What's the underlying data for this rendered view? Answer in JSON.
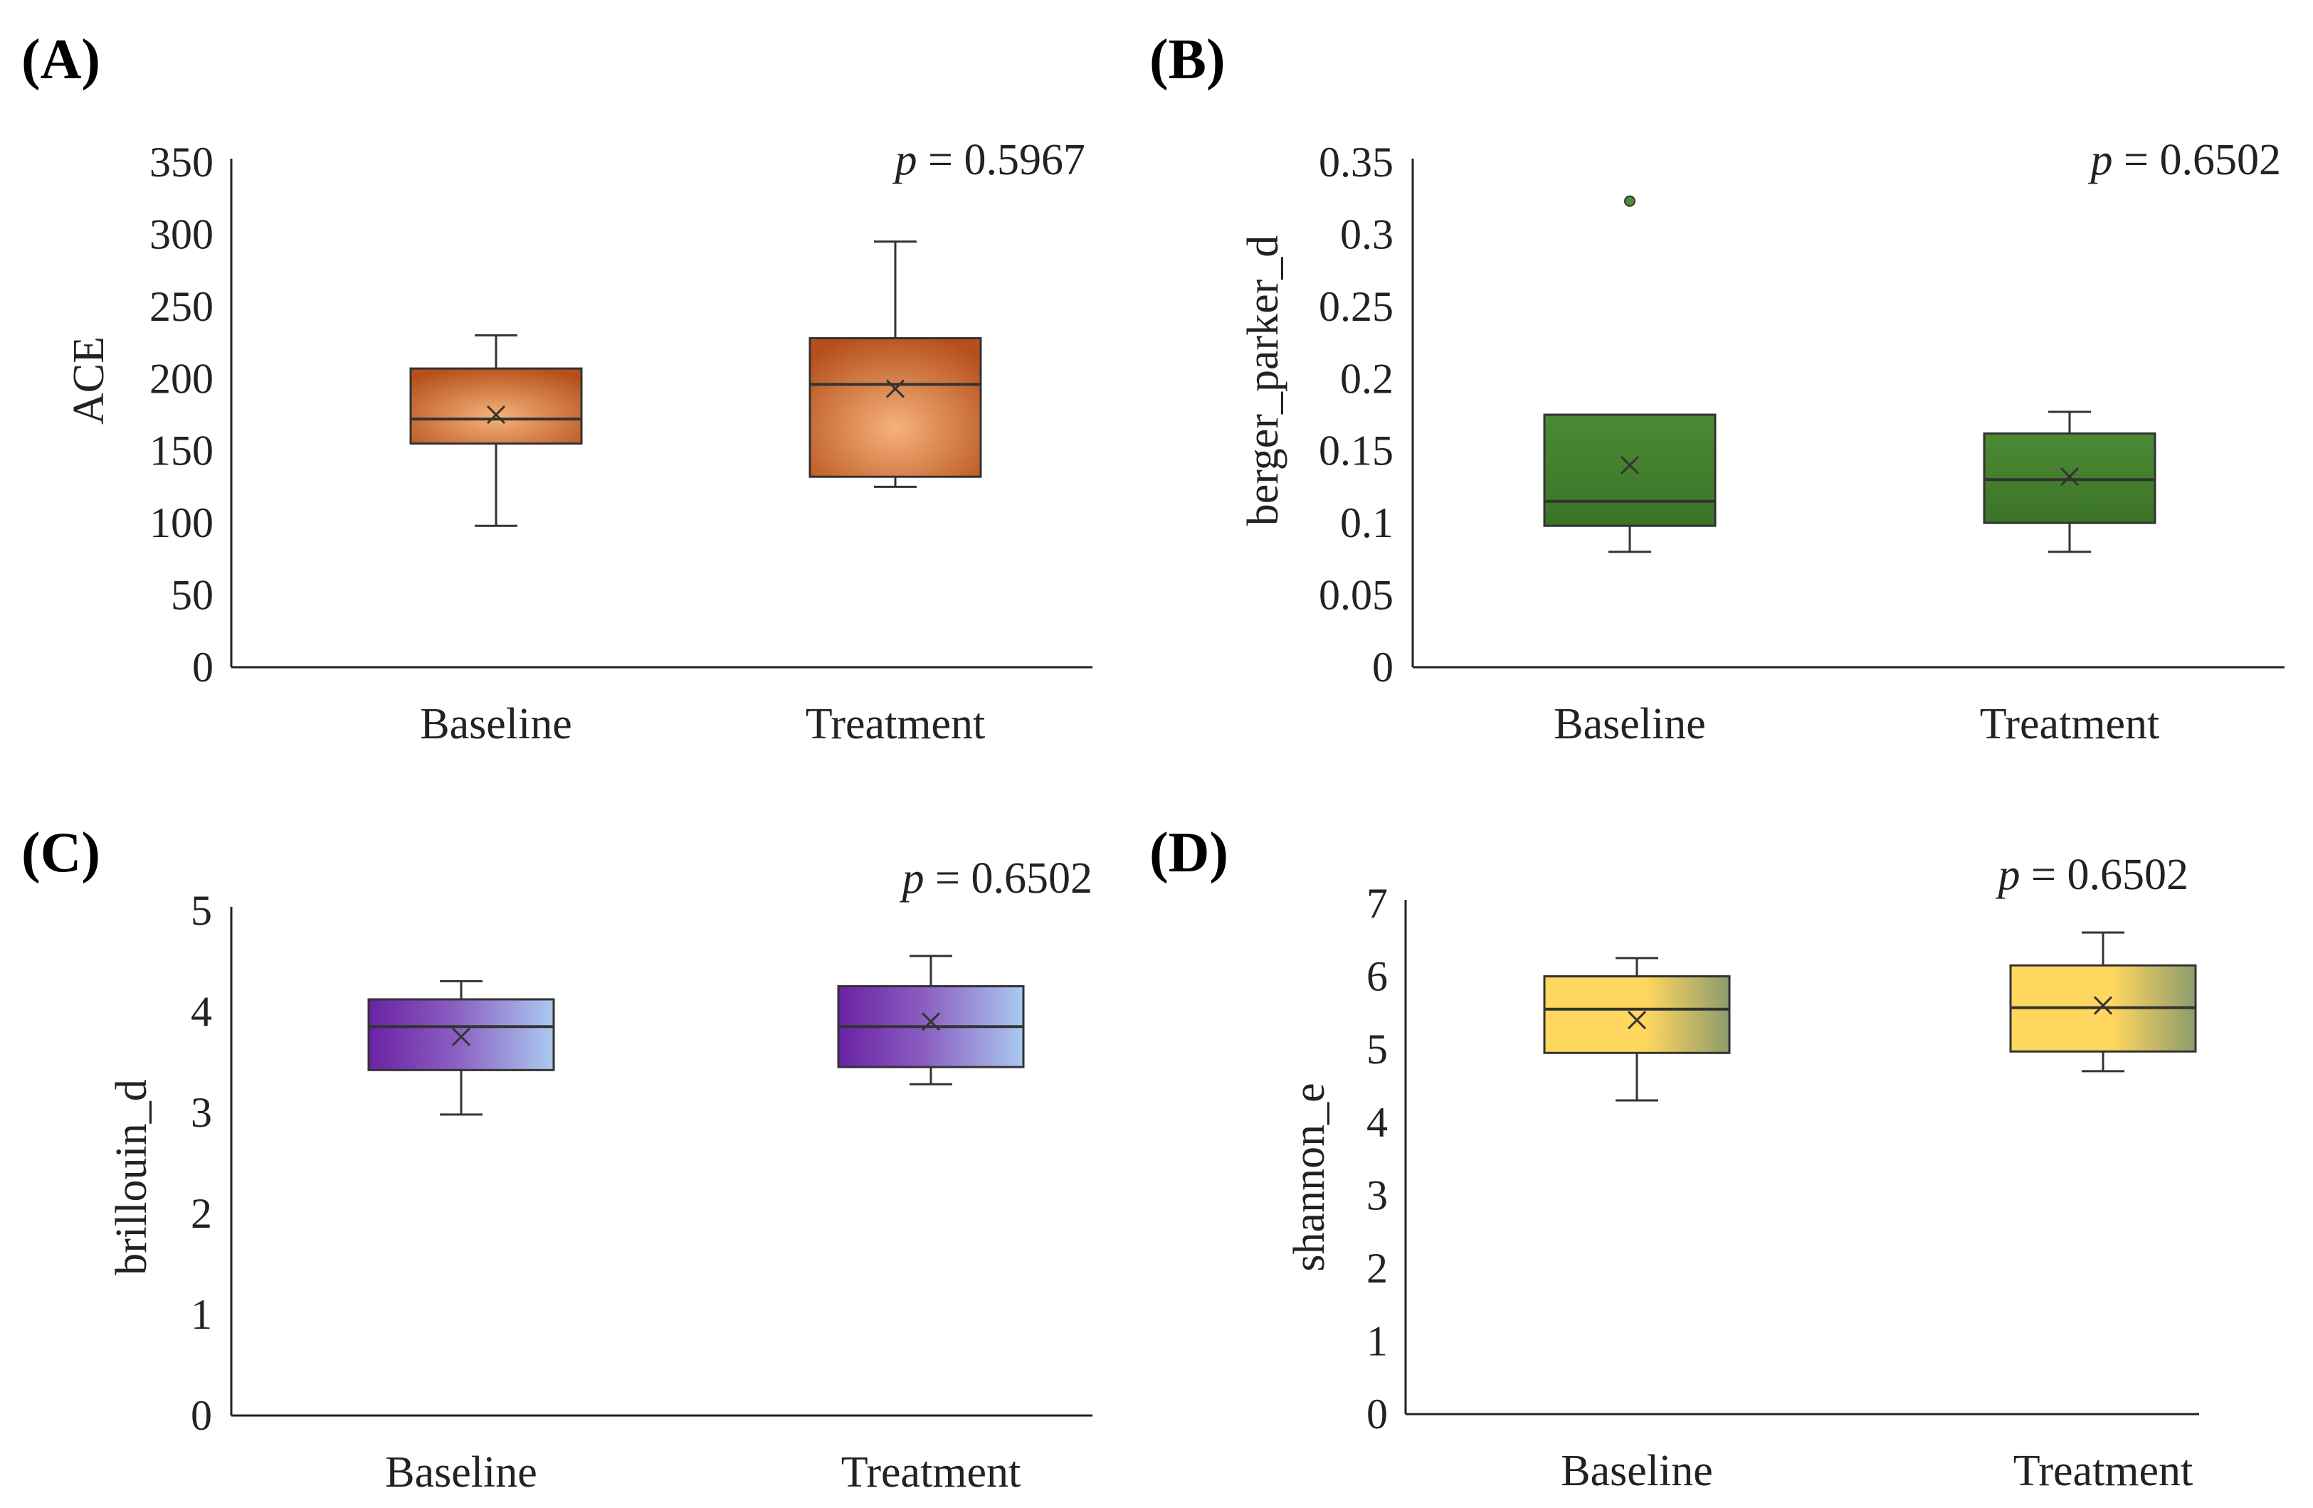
{
  "chart_data": [
    {
      "type": "box",
      "panel_label": "(A)",
      "ylabel": "ACE",
      "categories": [
        "Baseline",
        "Treatment"
      ],
      "ylim": [
        0,
        350
      ],
      "yticks": [
        0,
        50,
        100,
        150,
        200,
        250,
        300,
        350
      ],
      "ytick_labels": [
        "0",
        "50",
        "100",
        "150",
        "200",
        "250",
        "300",
        "350"
      ],
      "p_prefix": "p",
      "p_value": "= 0.5967",
      "colors": [
        "#b5501c",
        "#f5a15c"
      ],
      "boxes": [
        {
          "min": 98,
          "q1": 155,
          "median": 172,
          "q3": 207,
          "max": 230,
          "mean": 175,
          "outliers": []
        },
        {
          "min": 125,
          "q1": 132,
          "median": 196,
          "q3": 228,
          "max": 295,
          "mean": 193,
          "outliers": []
        }
      ]
    },
    {
      "type": "box",
      "panel_label": "(B)",
      "ylabel": "berger_parker_d",
      "categories": [
        "Baseline",
        "Treatment"
      ],
      "ylim": [
        0,
        0.35
      ],
      "yticks": [
        0,
        0.05,
        0.1,
        0.15,
        0.2,
        0.25,
        0.3,
        0.35
      ],
      "ytick_labels": [
        "0",
        "0.05",
        "0.1",
        "0.15",
        "0.2",
        "0.25",
        "0.3",
        "0.35"
      ],
      "p_prefix": "p",
      "p_value": "= 0.6502",
      "colors": [
        "#3d7a29",
        "#4f8f33"
      ],
      "boxes": [
        {
          "min": 0.08,
          "q1": 0.098,
          "median": 0.115,
          "q3": 0.175,
          "max": 0.175,
          "mean": 0.14,
          "outliers": [
            0.323
          ]
        },
        {
          "min": 0.08,
          "q1": 0.1,
          "median": 0.13,
          "q3": 0.162,
          "max": 0.177,
          "mean": 0.132,
          "outliers": []
        }
      ]
    },
    {
      "type": "box",
      "panel_label": "(C)",
      "ylabel": "brillouin_d",
      "categories": [
        "Baseline",
        "Treatment"
      ],
      "ylim": [
        0,
        5
      ],
      "yticks": [
        0,
        1,
        2,
        3,
        4,
        5
      ],
      "ytick_labels": [
        "0",
        "1",
        "2",
        "3",
        "4",
        "5"
      ],
      "p_prefix": "p",
      "p_value": "= 0.6502",
      "colors": [
        "#6f2aa8",
        "#a9c4ee"
      ],
      "boxes": [
        {
          "min": 2.98,
          "q1": 3.42,
          "median": 3.85,
          "q3": 4.12,
          "max": 4.3,
          "mean": 3.75,
          "outliers": []
        },
        {
          "min": 3.28,
          "q1": 3.45,
          "median": 3.85,
          "q3": 4.25,
          "max": 4.55,
          "mean": 3.9,
          "outliers": []
        }
      ]
    },
    {
      "type": "box",
      "panel_label": "(D)",
      "ylabel": "shannon_e",
      "categories": [
        "Baseline",
        "Treatment"
      ],
      "ylim": [
        0,
        7
      ],
      "yticks": [
        0,
        1,
        2,
        3,
        4,
        5,
        6,
        7
      ],
      "ytick_labels": [
        "0",
        "1",
        "2",
        "3",
        "4",
        "5",
        "6",
        "7"
      ],
      "p_prefix": "p",
      "p_value": "= 0.6502",
      "colors": [
        "#ffd55c",
        "#8a9a6a"
      ],
      "boxes": [
        {
          "min": 4.3,
          "q1": 4.95,
          "median": 5.55,
          "q3": 6.0,
          "max": 6.25,
          "mean": 5.4,
          "outliers": []
        },
        {
          "min": 4.7,
          "q1": 4.97,
          "median": 5.57,
          "q3": 6.15,
          "max": 6.6,
          "mean": 5.6,
          "outliers": []
        }
      ]
    }
  ]
}
